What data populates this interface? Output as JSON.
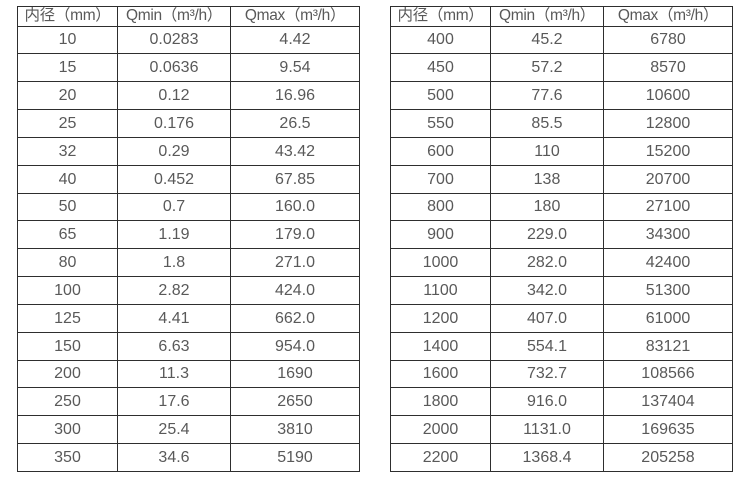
{
  "colors": {
    "background": "#ffffff",
    "text": "#595959",
    "border": "#2e2e2e"
  },
  "left_table": {
    "headers": [
      "内径（mm）",
      "Qmin（m³/h）",
      "Qmax（m³/h）"
    ],
    "rows": [
      [
        "10",
        "0.0283",
        "4.42"
      ],
      [
        "15",
        "0.0636",
        "9.54"
      ],
      [
        "20",
        "0.12",
        "16.96"
      ],
      [
        "25",
        "0.176",
        "26.5"
      ],
      [
        "32",
        "0.29",
        "43.42"
      ],
      [
        "40",
        "0.452",
        "67.85"
      ],
      [
        "50",
        "0.7",
        "160.0"
      ],
      [
        "65",
        "1.19",
        "179.0"
      ],
      [
        "80",
        "1.8",
        "271.0"
      ],
      [
        "100",
        "2.82",
        "424.0"
      ],
      [
        "125",
        "4.41",
        "662.0"
      ],
      [
        "150",
        "6.63",
        "954.0"
      ],
      [
        "200",
        "11.3",
        "1690"
      ],
      [
        "250",
        "17.6",
        "2650"
      ],
      [
        "300",
        "25.4",
        "3810"
      ],
      [
        "350",
        "34.6",
        "5190"
      ]
    ]
  },
  "right_table": {
    "headers": [
      "内径（mm）",
      "Qmin（m³/h）",
      "Qmax（m³/h）"
    ],
    "rows": [
      [
        "400",
        "45.2",
        "6780"
      ],
      [
        "450",
        "57.2",
        "8570"
      ],
      [
        "500",
        "77.6",
        "10600"
      ],
      [
        "550",
        "85.5",
        "12800"
      ],
      [
        "600",
        "110",
        "15200"
      ],
      [
        "700",
        "138",
        "20700"
      ],
      [
        "800",
        "180",
        "27100"
      ],
      [
        "900",
        "229.0",
        "34300"
      ],
      [
        "1000",
        "282.0",
        "42400"
      ],
      [
        "1100",
        "342.0",
        "51300"
      ],
      [
        "1200",
        "407.0",
        "61000"
      ],
      [
        "1400",
        "554.1",
        "83121"
      ],
      [
        "1600",
        "732.7",
        "108566"
      ],
      [
        "1800",
        "916.0",
        "137404"
      ],
      [
        "2000",
        "1131.0",
        "169635"
      ],
      [
        "2200",
        "1368.4",
        "205258"
      ]
    ]
  }
}
